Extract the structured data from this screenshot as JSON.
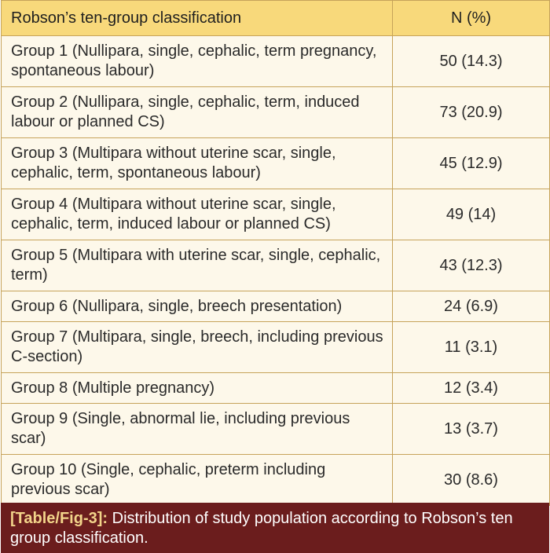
{
  "table": {
    "header": {
      "col1": "Robson’s ten-group classification",
      "col2": "N (%)"
    },
    "rows": [
      {
        "group": "Group 1 (Nullipara, single, cephalic, term pregnancy, spontaneous labour)",
        "value": "50 (14.3)"
      },
      {
        "group": "Group 2 (Nullipara, single, cephalic, term, induced labour or planned CS)",
        "value": "73 (20.9)"
      },
      {
        "group": "Group 3 (Multipara without uterine scar, single, cephalic, term, spontaneous labour)",
        "value": "45 (12.9)"
      },
      {
        "group": "Group 4 (Multipara without uterine scar, single, cephalic, term, induced labour or planned CS)",
        "value": "49 (14)"
      },
      {
        "group": "Group 5 (Multipara with uterine scar, single, cephalic, term)",
        "value": "43 (12.3)"
      },
      {
        "group": "Group 6 (Nullipara, single, breech presentation)",
        "value": "24 (6.9)"
      },
      {
        "group": "Group 7 (Multipara, single, breech, including previous C-section)",
        "value": "11 (3.1)"
      },
      {
        "group": "Group 8 (Multiple pregnancy)",
        "value": "12 (3.4)"
      },
      {
        "group": "Group 9 (Single, abnormal lie, including previous scar)",
        "value": "13 (3.7)"
      },
      {
        "group": "Group 10 (Single, cephalic, preterm including previous scar)",
        "value": "30 (8.6)"
      }
    ]
  },
  "caption": {
    "tag": "[Table/Fig-3]:",
    "text": "Distribution of study population according to Robson’s ten group classification."
  },
  "colors": {
    "header_bg": "#f8d97b",
    "row_bg": "#fdf8ea",
    "border": "#c6a35a",
    "caption_bg": "#6b1d1d"
  }
}
